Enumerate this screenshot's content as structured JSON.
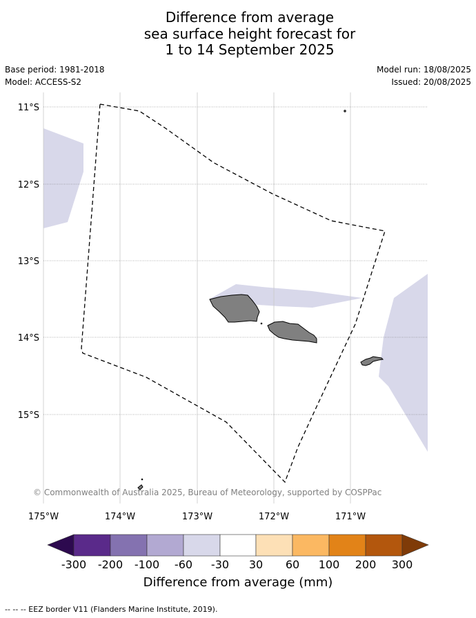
{
  "title_lines": [
    "Difference from average",
    "sea surface height forecast for",
    "1 to 14 September 2025"
  ],
  "meta_left": {
    "base_period": "Base period: 1981-2018",
    "model": "Model: ACCESS-S2"
  },
  "meta_right": {
    "model_run": "Model run: 18/08/2025",
    "issued": "Issued: 20/08/2025"
  },
  "map": {
    "lat_labels": [
      "11°S",
      "12°S",
      "13°S",
      "14°S",
      "15°S"
    ],
    "lon_labels": [
      "175°W",
      "174°W",
      "173°W",
      "172°W",
      "171°W"
    ],
    "copyright": "© Commonwealth of Australia 2025, Bureau of Meteorology, supported by COSPPac"
  },
  "colorbar": {
    "ticks": [
      "-300",
      "-200",
      "-100",
      "-60",
      "-30",
      "30",
      "60",
      "100",
      "200",
      "300"
    ],
    "colors": [
      "#2d0a4f",
      "#5a2a8a",
      "#8472b0",
      "#b2a9d2",
      "#d8d8ea",
      "#ffffff",
      "#fde0b6",
      "#fbb862",
      "#e28318",
      "#b3570d",
      "#7f3b08"
    ],
    "title": "Difference from average (mm)"
  },
  "footnote": "-- -- -- EEZ border V11 (Flanders Marine Institute, 2019).",
  "styles": {
    "land_color": "#808080",
    "anomaly_fill": "#d8d8ea"
  }
}
